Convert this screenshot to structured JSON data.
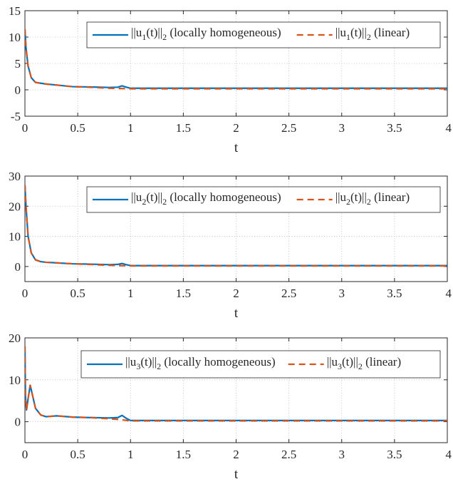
{
  "colors": {
    "homogeneous": "#0072BD",
    "linear": "#D95319"
  },
  "chart_data": [
    {
      "type": "line",
      "title": "",
      "xlabel": "t",
      "ylabel": "",
      "xlim": [
        0,
        4
      ],
      "ylim": [
        -5,
        15
      ],
      "xticks": [
        "0",
        "0.5",
        "1",
        "1.5",
        "2",
        "2.5",
        "3",
        "3.5",
        "4"
      ],
      "yticks": [
        "-5",
        "0",
        "5",
        "10",
        "15"
      ],
      "grid": true,
      "legend_position": "top-right",
      "series": [
        {
          "name": "||u1(t)||2 (locally homogeneous)",
          "label_parts": {
            "pre": "||u",
            "sub1": "1",
            "mid": "(t)||",
            "sub2": "2",
            "post": " (locally homogeneous)"
          },
          "style": "solid",
          "color": "#0072BD",
          "x": [
            0,
            0.01,
            0.03,
            0.06,
            0.1,
            0.2,
            0.3,
            0.45,
            0.6,
            0.8,
            0.88,
            0.92,
            0.96,
            1.0,
            1.5,
            2.0,
            2.5,
            3.0,
            3.5,
            4.0
          ],
          "y": [
            11.5,
            8.0,
            4.5,
            2.3,
            1.4,
            1.1,
            0.9,
            0.6,
            0.55,
            0.45,
            0.5,
            0.75,
            0.5,
            0.3,
            0.3,
            0.3,
            0.3,
            0.3,
            0.3,
            0.3
          ]
        },
        {
          "name": "||u1(t)||2 (linear)",
          "label_parts": {
            "pre": "||u",
            "sub1": "1",
            "mid": "(t)||",
            "sub2": "2",
            "post": " (linear)"
          },
          "style": "dashed",
          "color": "#D95319",
          "x": [
            0,
            0.01,
            0.03,
            0.06,
            0.1,
            0.2,
            0.3,
            0.45,
            0.6,
            0.8,
            0.9,
            1.0,
            1.5,
            2.0,
            2.5,
            3.0,
            3.5,
            4.0
          ],
          "y": [
            11.5,
            8.0,
            4.5,
            2.3,
            1.4,
            1.1,
            0.9,
            0.6,
            0.5,
            0.3,
            0.25,
            0.2,
            0.2,
            0.2,
            0.2,
            0.2,
            0.2,
            0.2
          ]
        }
      ]
    },
    {
      "type": "line",
      "title": "",
      "xlabel": "t",
      "ylabel": "",
      "xlim": [
        0,
        4
      ],
      "ylim": [
        -5,
        30
      ],
      "xticks": [
        "0",
        "0.5",
        "1",
        "1.5",
        "2",
        "2.5",
        "3",
        "3.5",
        "4"
      ],
      "yticks": [
        "0",
        "10",
        "20",
        "30"
      ],
      "grid": true,
      "legend_position": "top-right",
      "series": [
        {
          "name": "||u2(t)||2 (locally homogeneous)",
          "label_parts": {
            "pre": "||u",
            "sub1": "2",
            "mid": "(t)||",
            "sub2": "2",
            "post": " (locally homogeneous)"
          },
          "style": "solid",
          "color": "#0072BD",
          "x": [
            0,
            0.01,
            0.03,
            0.06,
            0.1,
            0.15,
            0.2,
            0.3,
            0.45,
            0.6,
            0.8,
            0.88,
            0.92,
            0.96,
            1.0,
            1.5,
            2.0,
            2.5,
            3.0,
            3.5,
            4.0
          ],
          "y": [
            27,
            20,
            10,
            4.5,
            2.2,
            1.6,
            1.4,
            1.2,
            0.9,
            0.8,
            0.6,
            0.7,
            1.0,
            0.6,
            0.3,
            0.3,
            0.3,
            0.3,
            0.3,
            0.3,
            0.3
          ]
        },
        {
          "name": "||u2(t)||2 (linear)",
          "label_parts": {
            "pre": "||u",
            "sub1": "2",
            "mid": "(t)||",
            "sub2": "2",
            "post": " (linear)"
          },
          "style": "dashed",
          "color": "#D95319",
          "x": [
            0,
            0.01,
            0.03,
            0.06,
            0.1,
            0.15,
            0.2,
            0.3,
            0.45,
            0.6,
            0.8,
            0.9,
            1.0,
            1.5,
            2.0,
            2.5,
            3.0,
            3.5,
            4.0
          ],
          "y": [
            27,
            20,
            10,
            4.5,
            2.2,
            1.6,
            1.4,
            1.2,
            0.9,
            0.7,
            0.4,
            0.3,
            0.2,
            0.2,
            0.2,
            0.2,
            0.2,
            0.2,
            0.2
          ]
        }
      ]
    },
    {
      "type": "line",
      "title": "",
      "xlabel": "t",
      "ylabel": "",
      "xlim": [
        0,
        4
      ],
      "ylim": [
        -5,
        20
      ],
      "xticks": [
        "0",
        "0.5",
        "1",
        "1.5",
        "2",
        "2.5",
        "3",
        "3.5",
        "4"
      ],
      "yticks": [
        "0",
        "10",
        "20"
      ],
      "grid": true,
      "legend_position": "top-right",
      "series": [
        {
          "name": "||u3(t)||2 (locally homogeneous)",
          "label_parts": {
            "pre": "||u",
            "sub1": "3",
            "mid": "(t)||",
            "sub2": "2",
            "post": "  (locally homogeneous)"
          },
          "style": "solid",
          "color": "#0072BD",
          "x": [
            0,
            0.005,
            0.015,
            0.03,
            0.05,
            0.07,
            0.1,
            0.15,
            0.2,
            0.3,
            0.45,
            0.6,
            0.8,
            0.88,
            0.92,
            0.96,
            1.0,
            1.5,
            2.0,
            2.5,
            3.0,
            3.5,
            4.0
          ],
          "y": [
            18,
            6,
            2.8,
            5.5,
            8.7,
            6.5,
            3.2,
            1.6,
            1.2,
            1.4,
            1.1,
            1.0,
            0.9,
            1.0,
            1.5,
            0.8,
            0.3,
            0.3,
            0.3,
            0.3,
            0.3,
            0.3,
            0.3
          ]
        },
        {
          "name": "||u3(t)||2 (linear)",
          "label_parts": {
            "pre": "||u",
            "sub1": "3",
            "mid": "(t)||",
            "sub2": "2",
            "post": "  (linear)"
          },
          "style": "dashed",
          "color": "#D95319",
          "x": [
            0,
            0.005,
            0.015,
            0.03,
            0.05,
            0.07,
            0.1,
            0.15,
            0.2,
            0.3,
            0.45,
            0.6,
            0.8,
            0.9,
            1.0,
            1.5,
            2.0,
            2.5,
            3.0,
            3.5,
            4.0
          ],
          "y": [
            18,
            6,
            2.8,
            5.5,
            8.7,
            6.5,
            3.2,
            1.6,
            1.2,
            1.4,
            1.1,
            1.0,
            0.7,
            0.5,
            0.2,
            0.2,
            0.2,
            0.2,
            0.2,
            0.2,
            0.2
          ]
        }
      ]
    }
  ]
}
